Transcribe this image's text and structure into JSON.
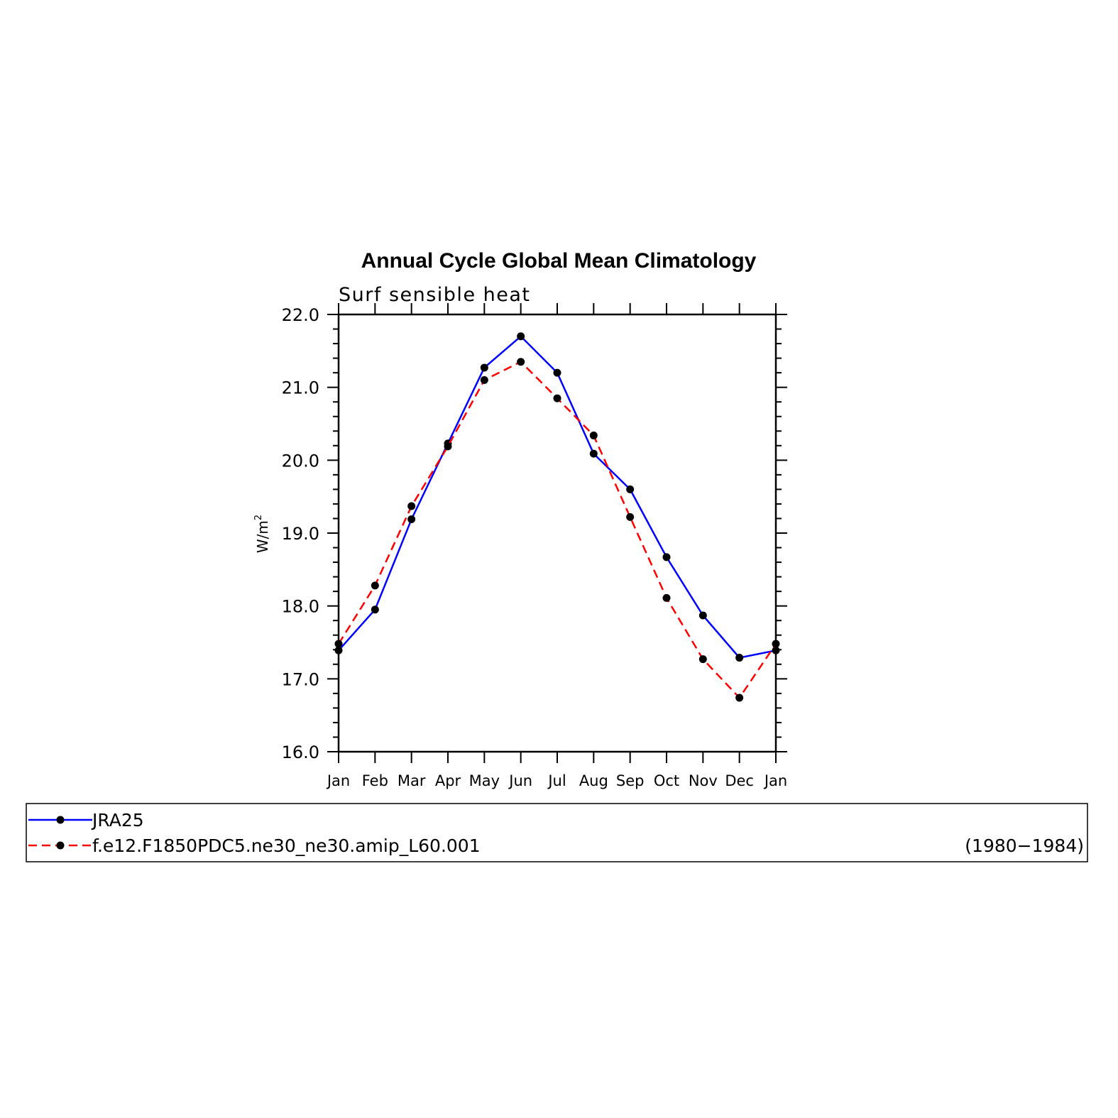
{
  "chart_data": {
    "type": "line",
    "title": "Annual Cycle Global Mean Climatology",
    "subtitle": "Surf sensible heat",
    "xlabel": "",
    "ylabel": "W/m",
    "ylabel_superscript": "2",
    "categories": [
      "Jan",
      "Feb",
      "Mar",
      "Apr",
      "May",
      "Jun",
      "Jul",
      "Aug",
      "Sep",
      "Oct",
      "Nov",
      "Dec",
      "Jan"
    ],
    "ylim": [
      16.0,
      22.0
    ],
    "yticks": [
      "16.0",
      "17.0",
      "18.0",
      "19.0",
      "20.0",
      "21.0",
      "22.0"
    ],
    "grid": false,
    "legend_position": "bottom",
    "series": [
      {
        "name": "JRA25",
        "color": "#0000ff",
        "line_style": "solid",
        "marker": "filled-circle",
        "values": [
          17.39,
          17.95,
          19.19,
          20.23,
          21.27,
          21.7,
          21.2,
          20.09,
          19.6,
          18.67,
          17.87,
          17.29,
          17.39
        ]
      },
      {
        "name": "f.e12.F1850PDC5.ne30_ne30.amip_L60.001",
        "years": "(1980−1984)",
        "color": "#ff0000",
        "line_style": "dashed",
        "marker": "filled-circle",
        "values": [
          17.48,
          18.28,
          19.37,
          20.19,
          21.1,
          21.35,
          20.85,
          20.34,
          19.22,
          18.11,
          17.27,
          16.74,
          17.48
        ]
      }
    ]
  }
}
